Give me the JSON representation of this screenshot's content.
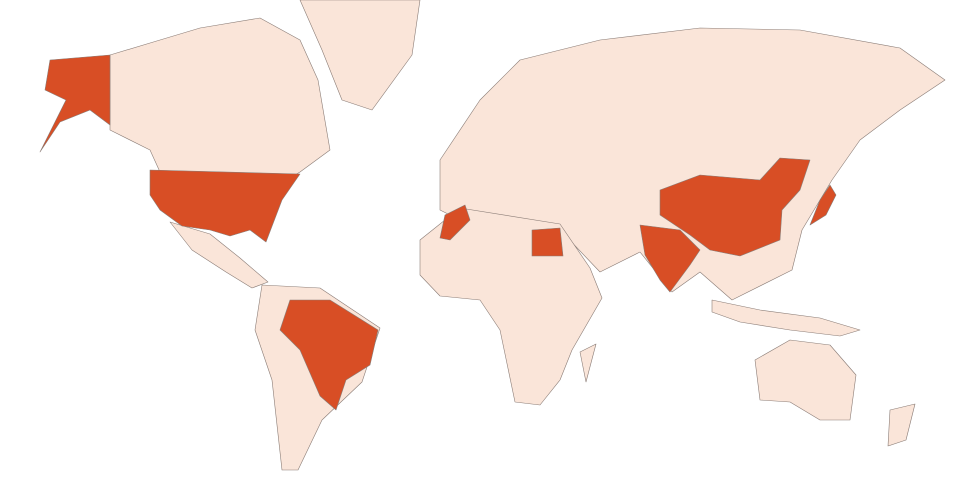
{
  "map": {
    "colors": {
      "background": "#ffffff",
      "base_fill": "#fae5d9",
      "highlight_fill": "#d84e25",
      "border": "#8a7c76"
    }
  }
}
